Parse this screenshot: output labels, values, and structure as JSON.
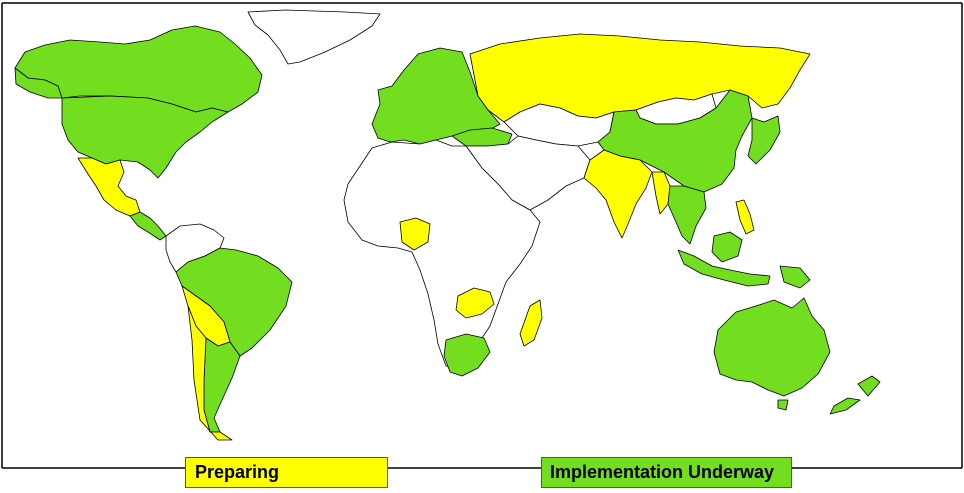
{
  "colors": {
    "preparing": "#ffff00",
    "implementation": "#73de20",
    "other": "#ffffff",
    "border": "#000000"
  },
  "legend": {
    "preparing_label": "Preparing",
    "implementation_label": "Implementation Underway"
  },
  "regions": [
    {
      "name": "canada",
      "status": "implementation"
    },
    {
      "name": "greenland",
      "status": "other"
    },
    {
      "name": "united-states",
      "status": "implementation"
    },
    {
      "name": "mexico",
      "status": "preparing"
    },
    {
      "name": "central-america",
      "status": "implementation"
    },
    {
      "name": "brazil",
      "status": "implementation"
    },
    {
      "name": "bolivia",
      "status": "preparing"
    },
    {
      "name": "argentina",
      "status": "implementation"
    },
    {
      "name": "chile",
      "status": "preparing"
    },
    {
      "name": "europe",
      "status": "implementation"
    },
    {
      "name": "russia",
      "status": "preparing"
    },
    {
      "name": "china",
      "status": "implementation"
    },
    {
      "name": "india",
      "status": "preparing"
    },
    {
      "name": "nigeria",
      "status": "preparing"
    },
    {
      "name": "zambia",
      "status": "preparing"
    },
    {
      "name": "madagascar",
      "status": "preparing"
    },
    {
      "name": "south-africa",
      "status": "implementation"
    },
    {
      "name": "australia",
      "status": "implementation"
    },
    {
      "name": "new-zealand",
      "status": "implementation"
    },
    {
      "name": "japan",
      "status": "implementation"
    },
    {
      "name": "southeast-asia",
      "status": "implementation"
    },
    {
      "name": "philippines",
      "status": "preparing"
    },
    {
      "name": "myanmar",
      "status": "preparing"
    },
    {
      "name": "mongolia",
      "status": "other"
    },
    {
      "name": "africa",
      "status": "other"
    },
    {
      "name": "middle-east",
      "status": "other"
    },
    {
      "name": "kazakhstan-central-asia",
      "status": "other"
    },
    {
      "name": "turkey",
      "status": "implementation"
    },
    {
      "name": "south-america-north",
      "status": "other"
    },
    {
      "name": "indonesia",
      "status": "implementation"
    },
    {
      "name": "papua-new-guinea",
      "status": "implementation"
    }
  ]
}
